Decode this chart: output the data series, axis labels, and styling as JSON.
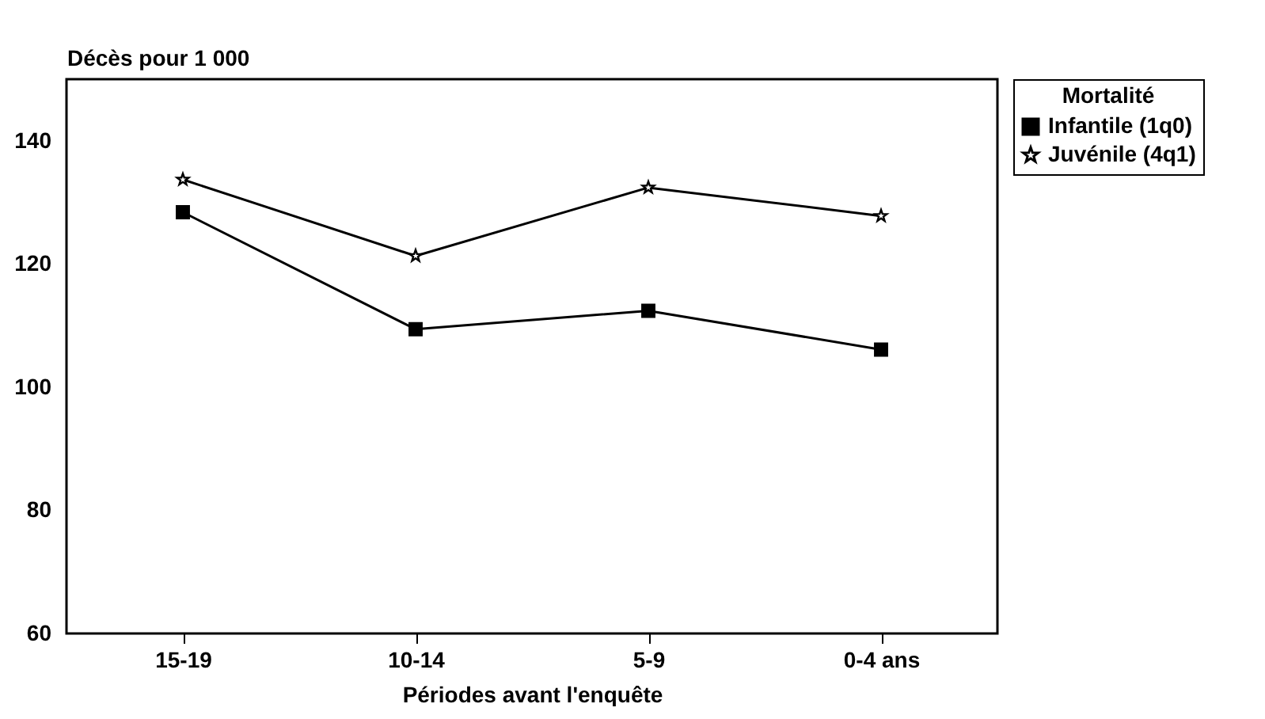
{
  "chart_data": {
    "type": "line",
    "ylabel": "Décès pour 1 000",
    "xlabel": "Périodes avant l'enquête",
    "legend_title": "Mortalité",
    "categories": [
      "15-19",
      "10-14",
      "5-9",
      "0-4 ans"
    ],
    "series": [
      {
        "name": "Infantile (1q0)",
        "color": "#000000",
        "marker": "square",
        "values": [
          128.4,
          109.4,
          112.4,
          106.1
        ]
      },
      {
        "name": "Juvénile (4q1)",
        "color": "#000000",
        "marker": "star",
        "values": [
          133.7,
          121.3,
          132.4,
          127.8
        ]
      }
    ],
    "ylim": [
      60,
      150
    ],
    "yticks": [
      60,
      80,
      100,
      120,
      140
    ],
    "grid": false,
    "legend": "right"
  }
}
